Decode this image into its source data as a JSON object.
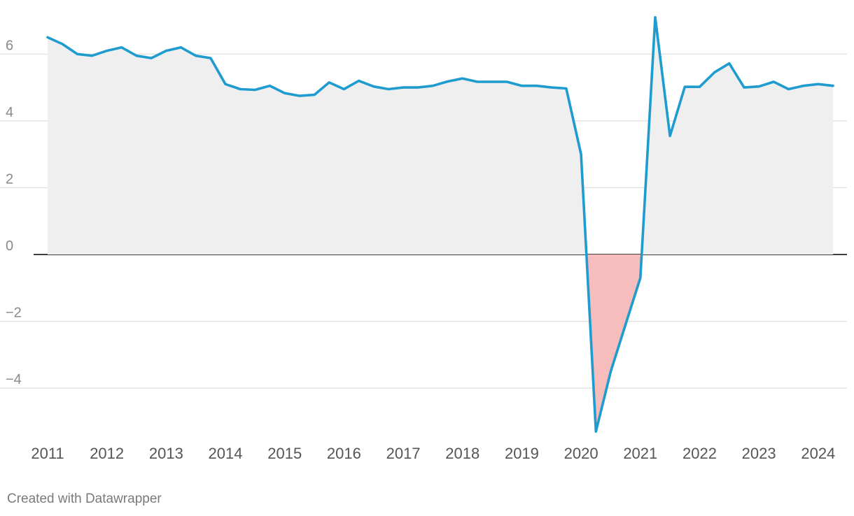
{
  "chart_data": {
    "type": "area",
    "x_start": 2011,
    "x_step": 0.25,
    "x_ticks": [
      "2011",
      "2012",
      "2013",
      "2014",
      "2015",
      "2016",
      "2017",
      "2018",
      "2019",
      "2020",
      "2021",
      "2022",
      "2023",
      "2024"
    ],
    "y_ticks": [
      "6",
      "4",
      "2",
      "0",
      "−2",
      "−4"
    ],
    "ylim": [
      -5.4,
      7.2
    ],
    "grid": true,
    "colors": {
      "line": "#1f9ccf",
      "positive_fill": "#efefef",
      "negative_fill": "#f7bcbc",
      "zero_line": "#000000",
      "grid": "#dddddd"
    },
    "values": [
      6.5,
      6.3,
      6.0,
      5.95,
      6.1,
      6.2,
      5.95,
      5.88,
      6.1,
      6.2,
      5.95,
      5.88,
      5.1,
      4.95,
      4.93,
      5.05,
      4.83,
      4.75,
      4.78,
      5.15,
      4.95,
      5.2,
      5.03,
      4.95,
      5.0,
      5.0,
      5.05,
      5.18,
      5.27,
      5.17,
      5.17,
      5.17,
      5.05,
      5.05,
      5.0,
      4.97,
      3.0,
      -5.3,
      -3.5,
      -2.1,
      -0.7,
      7.1,
      3.55,
      5.02,
      5.02,
      5.45,
      5.72,
      5.0,
      5.03,
      5.17,
      4.95,
      5.05,
      5.1,
      5.05
    ]
  },
  "footer": {
    "credit": "Created with Datawrapper"
  }
}
